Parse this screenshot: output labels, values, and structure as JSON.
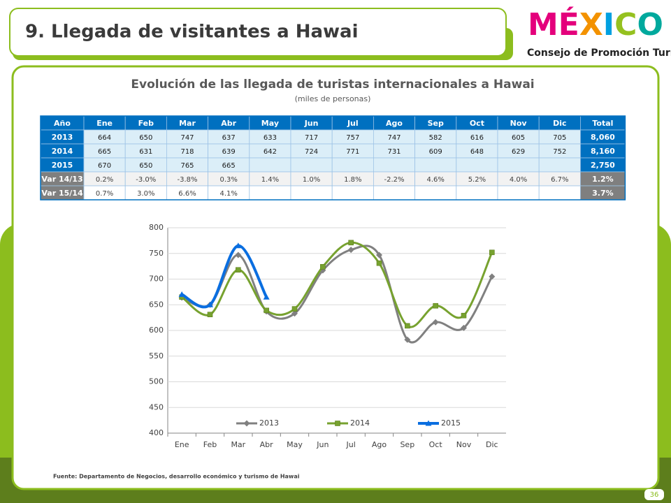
{
  "header": {
    "title": "9. Llegada de visitantes a Hawai"
  },
  "logo": {
    "name": "MÉXICO",
    "subtitle": "Consejo de Promoción Turística"
  },
  "table": {
    "title": "Evolución de las llegada de turistas internacionales a Hawai",
    "subtitle": "(miles de personas)",
    "header": [
      "Año",
      "Ene",
      "Feb",
      "Mar",
      "Abr",
      "May",
      "Jun",
      "Jul",
      "Ago",
      "Sep",
      "Oct",
      "Nov",
      "Dic",
      "Total"
    ],
    "rows": [
      [
        "2013",
        "664",
        "650",
        "747",
        "637",
        "633",
        "717",
        "757",
        "747",
        "582",
        "616",
        "605",
        "705",
        "8,060"
      ],
      [
        "2014",
        "665",
        "631",
        "718",
        "639",
        "642",
        "724",
        "771",
        "731",
        "609",
        "648",
        "629",
        "752",
        "8,160"
      ],
      [
        "2015",
        "670",
        "650",
        "765",
        "665",
        null,
        null,
        null,
        null,
        null,
        null,
        null,
        null,
        "2,750"
      ],
      [
        "Var 14/13",
        "0.2%",
        "-3.0%",
        "-3.8%",
        "0.3%",
        "1.4%",
        "1.0%",
        "1.8%",
        "-2.2%",
        "4.6%",
        "5.2%",
        "4.0%",
        "6.7%",
        "1.2%"
      ],
      [
        "Var 15/14",
        "0.7%",
        "3.0%",
        "6.6%",
        "4.1%",
        null,
        null,
        null,
        null,
        null,
        null,
        null,
        null,
        "3.7%"
      ]
    ]
  },
  "chart_data": {
    "type": "line",
    "categories": [
      "Ene",
      "Feb",
      "Mar",
      "Abr",
      "May",
      "Jun",
      "Jul",
      "Ago",
      "Sep",
      "Oct",
      "Nov",
      "Dic"
    ],
    "series": [
      {
        "name": "2013",
        "color": "#808080",
        "marker": "diamond",
        "values": [
          664,
          650,
          747,
          637,
          633,
          717,
          757,
          747,
          582,
          616,
          605,
          705
        ]
      },
      {
        "name": "2014",
        "color": "#77a22f",
        "marker": "square",
        "values": [
          665,
          631,
          718,
          639,
          642,
          724,
          771,
          731,
          609,
          648,
          629,
          752
        ]
      },
      {
        "name": "2015",
        "color": "#0a6ee0",
        "marker": "triangle",
        "values": [
          670,
          650,
          765,
          665,
          null,
          null,
          null,
          null,
          null,
          null,
          null,
          null
        ]
      }
    ],
    "ylim": [
      400,
      800
    ],
    "yticks": [
      400,
      450,
      500,
      550,
      600,
      650,
      700,
      750,
      800
    ],
    "grid": true,
    "legend": "bottom"
  },
  "source": "Fuente: Departamento de Negocios, desarrollo económico y turismo de Hawai",
  "page_number": "36"
}
